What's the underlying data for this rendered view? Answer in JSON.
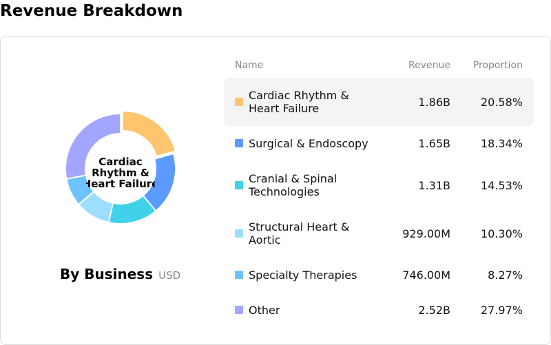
{
  "title": "Revenue Breakdown",
  "panel": {
    "subtitle": "By Business",
    "unit": "USD",
    "center_label": "Cardiac Rhythm & Heart Failure"
  },
  "table": {
    "headers": {
      "name": "Name",
      "revenue": "Revenue",
      "proportion": "Proportion"
    }
  },
  "chart_data": {
    "type": "pie",
    "variant": "donut",
    "categories": [
      "Cardiac Rhythm & Heart Failure",
      "Surgical & Endoscopy",
      "Cranial & Spinal Technologies",
      "Structural Heart & Aortic",
      "Specialty Therapies",
      "Other"
    ],
    "revenue_labels": [
      "1.86B",
      "1.65B",
      "1.31B",
      "929.00M",
      "746.00M",
      "2.52B"
    ],
    "proportion_labels": [
      "20.58%",
      "18.34%",
      "14.53%",
      "10.30%",
      "8.27%",
      "27.97%"
    ],
    "values": [
      20.58,
      18.34,
      14.53,
      10.3,
      8.27,
      27.97
    ],
    "colors": [
      "#ffc46e",
      "#5b9bff",
      "#3fd2e8",
      "#9dddff",
      "#6ec3ff",
      "#a3a6ff"
    ],
    "highlighted": 0
  }
}
